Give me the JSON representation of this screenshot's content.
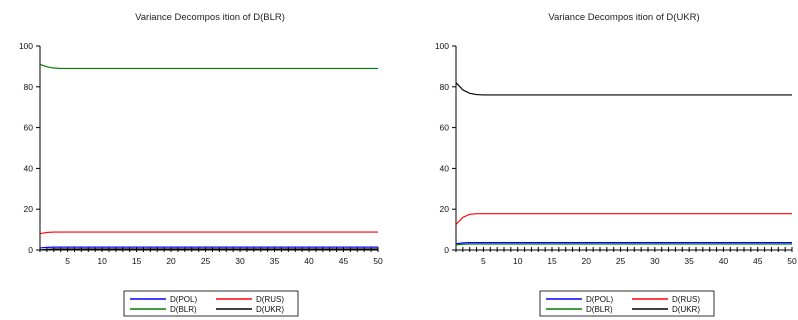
{
  "chart_data": [
    {
      "type": "line",
      "title": "Variance Decompos ition of D(BLR)",
      "xlabel": "",
      "ylabel": "",
      "x_range": [
        1,
        50
      ],
      "ylim": [
        0,
        100
      ],
      "x_ticks": [
        5,
        10,
        15,
        20,
        25,
        30,
        35,
        40,
        45,
        50
      ],
      "y_ticks": [
        0,
        20,
        40,
        60,
        80,
        100
      ],
      "grid": false,
      "legend_position": "bottom",
      "series": [
        {
          "name": "D(POL)",
          "color": "#0000ff",
          "x": [
            1,
            2,
            3,
            50
          ],
          "y": [
            1.0,
            1.3,
            1.4,
            1.4
          ]
        },
        {
          "name": "D(RUS)",
          "color": "#ff0000",
          "x": [
            1,
            2,
            3,
            50
          ],
          "y": [
            8.0,
            8.6,
            8.8,
            8.8
          ]
        },
        {
          "name": "D(BLR)",
          "color": "#008000",
          "x": [
            1,
            2,
            3,
            4,
            50
          ],
          "y": [
            91.0,
            89.8,
            89.2,
            89.0,
            89.0
          ]
        },
        {
          "name": "D(UKR)",
          "color": "#000000",
          "x": [
            1,
            2,
            3,
            50
          ],
          "y": [
            0.0,
            0.3,
            0.5,
            0.5
          ]
        }
      ]
    },
    {
      "type": "line",
      "title": "Variance Decompos ition of D(UKR)",
      "xlabel": "",
      "ylabel": "",
      "x_range": [
        1,
        50
      ],
      "ylim": [
        0,
        100
      ],
      "x_ticks": [
        5,
        10,
        15,
        20,
        25,
        30,
        35,
        40,
        45,
        50
      ],
      "y_ticks": [
        0,
        20,
        40,
        60,
        80,
        100
      ],
      "grid": false,
      "legend_position": "bottom",
      "series": [
        {
          "name": "D(POL)",
          "color": "#0000ff",
          "x": [
            1,
            2,
            3,
            50
          ],
          "y": [
            3.0,
            3.5,
            3.6,
            3.6
          ]
        },
        {
          "name": "D(RUS)",
          "color": "#ff0000",
          "x": [
            1,
            2,
            3,
            4,
            50
          ],
          "y": [
            12.5,
            16.0,
            17.5,
            17.8,
            17.8
          ]
        },
        {
          "name": "D(BLR)",
          "color": "#008000",
          "x": [
            1,
            2,
            3,
            50
          ],
          "y": [
            2.5,
            2.8,
            2.9,
            2.9
          ]
        },
        {
          "name": "D(UKR)",
          "color": "#000000",
          "x": [
            1,
            2,
            3,
            4,
            5,
            50
          ],
          "y": [
            82.0,
            78.5,
            76.8,
            76.2,
            76.0,
            76.0
          ]
        }
      ]
    }
  ]
}
